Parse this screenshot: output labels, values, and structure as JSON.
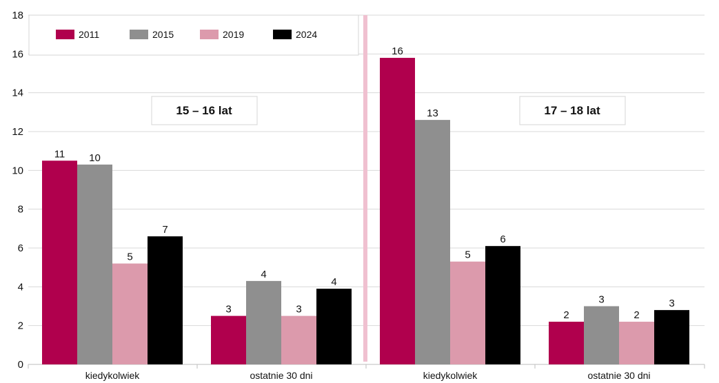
{
  "chart_data": {
    "type": "bar",
    "title": "",
    "xlabel": "",
    "ylabel": "",
    "ylim": [
      0,
      18
    ],
    "yticks": [
      "0",
      "2",
      "4",
      "6",
      "8",
      "10",
      "12",
      "14",
      "16",
      "18"
    ],
    "grid": true,
    "legend_position": "top-left",
    "panels": [
      {
        "label": "15 – 16 lat",
        "categories": [
          "kiedykolwiek",
          "ostatnie 30 dni"
        ],
        "series": [
          {
            "name": "2011",
            "values": [
              10.5,
              2.5
            ],
            "labels": [
              "11",
              "3"
            ]
          },
          {
            "name": "2015",
            "values": [
              10.3,
              4.3
            ],
            "labels": [
              "10",
              "4"
            ]
          },
          {
            "name": "2019",
            "values": [
              5.2,
              2.5
            ],
            "labels": [
              "5",
              "3"
            ]
          },
          {
            "name": "2024",
            "values": [
              6.6,
              3.9
            ],
            "labels": [
              "7",
              "4"
            ]
          }
        ]
      },
      {
        "label": "17 – 18 lat",
        "categories": [
          "kiedykolwiek",
          "ostatnie 30 dni"
        ],
        "series": [
          {
            "name": "2011",
            "values": [
              15.8,
              2.2
            ],
            "labels": [
              "16",
              "2"
            ]
          },
          {
            "name": "2015",
            "values": [
              12.6,
              3.0
            ],
            "labels": [
              "13",
              "3"
            ]
          },
          {
            "name": "2019",
            "values": [
              5.3,
              2.2
            ],
            "labels": [
              "5",
              "2"
            ]
          },
          {
            "name": "2024",
            "values": [
              6.1,
              2.8
            ],
            "labels": [
              "6",
              "3"
            ]
          }
        ]
      }
    ],
    "legend": [
      "2011",
      "2015",
      "2019",
      "2024"
    ],
    "colors": [
      "#b0004d",
      "#8f8f8f",
      "#dc9aac",
      "#000000"
    ],
    "divider_color": "#f0c0d0",
    "grid_color": "#d8d8d8"
  }
}
